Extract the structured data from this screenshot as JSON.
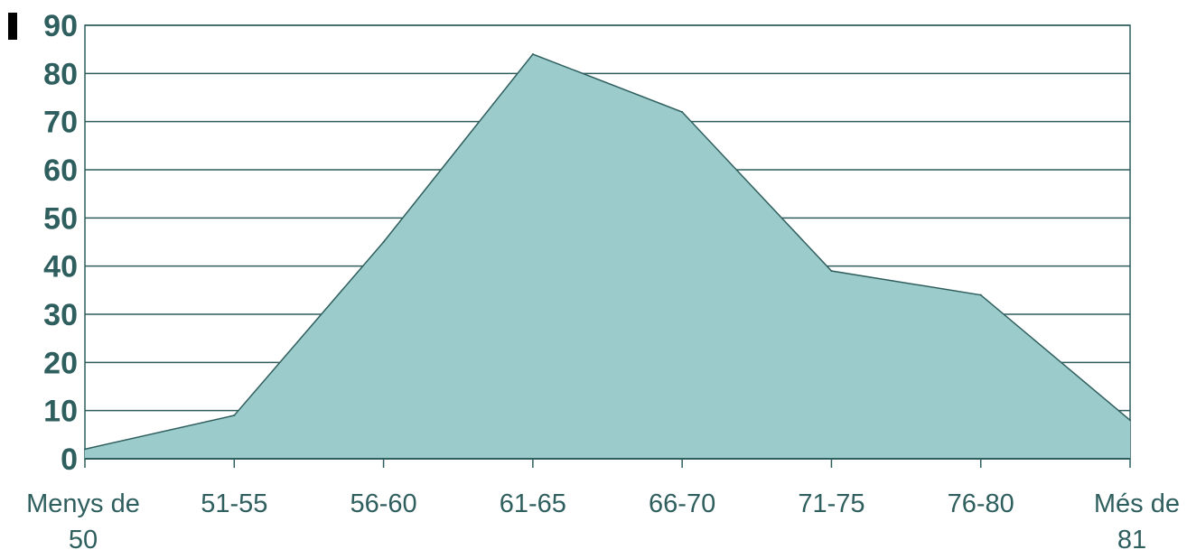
{
  "chart_data": {
    "type": "area",
    "categories": [
      [
        "Menys de",
        "50"
      ],
      [
        "51-55"
      ],
      [
        "56-60"
      ],
      [
        "61-65"
      ],
      [
        "66-70"
      ],
      [
        "71-75"
      ],
      [
        "76-80"
      ],
      [
        "Més de",
        "81"
      ]
    ],
    "values": [
      2,
      9,
      45,
      84,
      72,
      39,
      34,
      8
    ],
    "ylim": [
      0,
      90
    ],
    "yticks": [
      0,
      10,
      20,
      30,
      40,
      50,
      60,
      70,
      80,
      90
    ],
    "grid": true,
    "legend": "none",
    "colors": {
      "fill": "#9ccbcb",
      "line": "#2f5e5e",
      "grid": "#2f5e5e",
      "axis": "#2f5e5e",
      "text": "#2f5e5e"
    }
  }
}
